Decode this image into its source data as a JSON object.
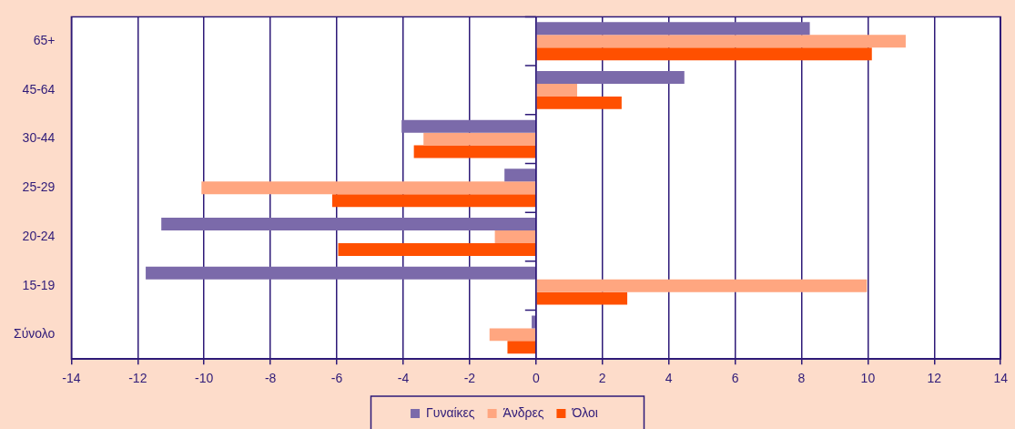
{
  "chart_data": {
    "type": "bar",
    "orientation": "horizontal",
    "categories": [
      "65+",
      "45-64",
      "30-44",
      "25-29",
      "20-24",
      "15-19",
      "Σύνολο"
    ],
    "series": [
      {
        "name": "Γυναίκες",
        "color": "#7b6aaa",
        "values": [
          8.25,
          4.47,
          -4.05,
          -0.95,
          -11.29,
          -11.76,
          -0.13
        ]
      },
      {
        "name": "Άνδρες",
        "color": "#ffa680",
        "values": [
          11.14,
          1.24,
          -3.39,
          -10.08,
          -1.24,
          9.97,
          -1.4
        ]
      },
      {
        "name": "Όλοι",
        "color": "#ff5000",
        "values": [
          10.12,
          2.58,
          -3.68,
          -6.14,
          -5.96,
          2.75,
          -0.86
        ]
      }
    ],
    "xlim": [
      -14,
      14
    ],
    "xticks": [
      -14,
      -12,
      -10,
      -8,
      -6,
      -4,
      -2,
      0,
      2,
      4,
      6,
      8,
      10,
      12,
      14
    ],
    "grid": "x",
    "legend": "bottom"
  }
}
